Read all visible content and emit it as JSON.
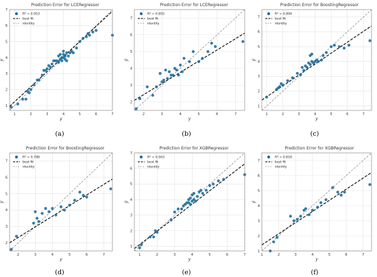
{
  "colors": {
    "point": "#1f6f9f",
    "best_fit": "#000000",
    "identity": "#8c8c8c",
    "grid": "#e3e3e3",
    "frame": "#7a7a7a"
  },
  "chart_data": [
    {
      "type": "scatter",
      "title": "Prediction Error for LCERegressor",
      "xlabel": "y",
      "ylabel": "ŷ",
      "xlim": [
        0.7,
        7
      ],
      "ylim": [
        0.7,
        7
      ],
      "xticks": [
        "1",
        "2",
        "3",
        "4",
        "5",
        "6",
        "7"
      ],
      "yticks": [
        "1",
        "2",
        "3",
        "4",
        "5",
        "6",
        "7"
      ],
      "legend": {
        "position": "top-left",
        "r2_label": "R² = 0.953",
        "best_fit": "best fit",
        "identity": "identity"
      },
      "best_fit_line": [
        [
          0.7,
          0.95
        ],
        [
          7,
          6.9
        ]
      ],
      "subfigure_label": "(a)",
      "points": {
        "x": [
          0.8,
          1.2,
          1.5,
          1.7,
          1.8,
          1.9,
          2.0,
          2.2,
          2.4,
          2.5,
          2.7,
          2.8,
          2.9,
          3.0,
          3.1,
          3.2,
          3.3,
          3.4,
          3.5,
          3.6,
          3.7,
          3.7,
          3.8,
          3.8,
          3.9,
          3.9,
          4.0,
          4.0,
          4.0,
          4.1,
          4.1,
          4.2,
          4.2,
          4.3,
          4.4,
          4.5,
          4.6,
          4.8,
          5.0,
          5.2,
          5.4,
          5.5,
          5.6,
          5.8,
          6.0,
          7.0
        ],
        "y": [
          0.9,
          1.1,
          1.4,
          1.4,
          1.9,
          1.8,
          2.0,
          2.3,
          2.6,
          2.6,
          2.9,
          3.2,
          3.2,
          3.3,
          3.5,
          3.4,
          3.6,
          3.8,
          3.8,
          3.8,
          3.7,
          4.1,
          3.9,
          4.2,
          3.8,
          4.0,
          4.0,
          4.2,
          4.4,
          3.9,
          4.1,
          3.8,
          4.3,
          4.1,
          4.3,
          4.4,
          4.3,
          4.6,
          5.0,
          5.2,
          5.3,
          5.5,
          5.4,
          5.6,
          5.7,
          5.4
        ]
      }
    },
    {
      "type": "scatter",
      "title": "Prediction Error for LCERegressor",
      "xlabel": "y",
      "ylabel": "ŷ",
      "xlim": [
        1.5,
        7.5
      ],
      "ylim": [
        1.5,
        7.5
      ],
      "xticks": [
        "2",
        "3",
        "4",
        "5",
        "6",
        "7"
      ],
      "yticks": [
        "2",
        "3",
        "4",
        "5",
        "6",
        "7"
      ],
      "legend": {
        "position": "top-left",
        "r2_label": "R² = 0.855",
        "best_fit": "best fit",
        "identity": "identity"
      },
      "best_fit_line": [
        [
          1.5,
          2.1
        ],
        [
          7.5,
          6.1
        ]
      ],
      "subfigure_label": "(b)",
      "points": {
        "x": [
          1.6,
          1.8,
          2.2,
          2.5,
          2.7,
          2.9,
          3.0,
          3.1,
          3.2,
          3.3,
          3.4,
          3.5,
          3.6,
          3.7,
          3.8,
          3.9,
          4.0,
          4.1,
          4.2,
          4.5,
          4.7,
          5.0,
          5.2,
          5.5,
          5.7,
          5.9,
          7.4
        ],
        "y": [
          1.6,
          2.2,
          2.9,
          2.4,
          2.9,
          3.7,
          3.2,
          3.3,
          3.9,
          3.4,
          3.8,
          3.6,
          3.6,
          4.0,
          3.9,
          3.6,
          4.2,
          3.8,
          4.6,
          4.4,
          5.0,
          4.4,
          4.6,
          5.0,
          5.5,
          5.3,
          5.6
        ]
      }
    },
    {
      "type": "scatter",
      "title": "Prediction Error for BoostingRegressor",
      "xlabel": "y",
      "ylabel": "ŷ",
      "xlim": [
        0.7,
        7.5
      ],
      "ylim": [
        0.7,
        7.5
      ],
      "xticks": [
        "1",
        "2",
        "3",
        "4",
        "5",
        "6",
        "7"
      ],
      "yticks": [
        "1",
        "2",
        "3",
        "4",
        "5",
        "6",
        "7"
      ],
      "legend": {
        "position": "top-left",
        "r2_label": "R² = 0.894",
        "best_fit": "best fit",
        "identity": "identity"
      },
      "best_fit_line": [
        [
          0.7,
          1.4
        ],
        [
          7.5,
          6.4
        ]
      ],
      "subfigure_label": "(c)",
      "points": {
        "x": [
          1.0,
          1.6,
          1.7,
          1.8,
          1.9,
          2.0,
          2.3,
          2.6,
          2.9,
          3.1,
          3.2,
          3.3,
          3.4,
          3.5,
          3.6,
          3.7,
          3.7,
          3.8,
          3.8,
          3.9,
          4.0,
          4.1,
          4.2,
          4.4,
          4.5,
          4.7,
          5.0,
          5.2,
          5.5,
          5.8,
          6.1,
          7.4
        ],
        "y": [
          1.6,
          2.1,
          2.2,
          2.3,
          2.5,
          2.4,
          2.7,
          2.9,
          3.2,
          3.1,
          3.6,
          3.4,
          3.7,
          3.6,
          3.9,
          3.8,
          4.4,
          4.0,
          4.5,
          3.9,
          4.0,
          4.1,
          4.0,
          4.1,
          4.4,
          4.6,
          5.0,
          5.1,
          5.0,
          4.9,
          5.1,
          5.4
        ]
      }
    },
    {
      "type": "scatter",
      "title": "Prediction Error for BoostingRegressor",
      "xlabel": "y",
      "ylabel": "ŷ",
      "xlim": [
        1.5,
        7.5
      ],
      "ylim": [
        1.5,
        7.5
      ],
      "xticks": [
        "2",
        "3",
        "4",
        "5",
        "6",
        "7"
      ],
      "yticks": [
        "2",
        "3",
        "4",
        "5",
        "6",
        "7"
      ],
      "legend": {
        "position": "top-left",
        "r2_label": "R² = 0.788",
        "best_fit": "best fit",
        "identity": "identity"
      },
      "best_fit_line": [
        [
          1.5,
          2.0
        ],
        [
          7.5,
          5.9
        ]
      ],
      "subfigure_label": "(d)",
      "points": {
        "x": [
          1.6,
          1.9,
          2.9,
          3.0,
          3.1,
          3.2,
          3.4,
          3.6,
          3.8,
          4.0,
          4.2,
          4.5,
          4.7,
          5.0,
          5.3,
          5.6,
          5.8,
          6.0,
          7.4
        ],
        "y": [
          1.6,
          2.4,
          3.2,
          3.9,
          3.5,
          3.3,
          3.8,
          4.1,
          3.9,
          4.1,
          3.7,
          4.2,
          4.0,
          4.3,
          4.6,
          5.1,
          4.9,
          4.8,
          5.3
        ]
      }
    },
    {
      "type": "scatter",
      "title": "Prediction Error for XGBRegressor",
      "xlabel": "y",
      "ylabel": "ŷ",
      "xlim": [
        0.7,
        7
      ],
      "ylim": [
        0.7,
        7
      ],
      "xticks": [
        "1",
        "2",
        "3",
        "4",
        "5",
        "6",
        "7"
      ],
      "yticks": [
        "1",
        "2",
        "3",
        "4",
        "5",
        "6",
        "7"
      ],
      "legend": {
        "position": "top-left",
        "r2_label": "R² = 0.943",
        "best_fit": "best fit",
        "identity": "identity"
      },
      "best_fit_line": [
        [
          0.7,
          0.85
        ],
        [
          7,
          6.3
        ]
      ],
      "subfigure_label": "(e)",
      "points": {
        "x": [
          1.0,
          1.1,
          1.6,
          1.8,
          1.9,
          2.0,
          2.8,
          3.0,
          3.2,
          3.4,
          3.5,
          3.6,
          3.7,
          3.8,
          3.8,
          3.9,
          3.9,
          4.0,
          4.0,
          4.1,
          4.1,
          4.2,
          4.3,
          4.4,
          4.5,
          4.6,
          4.8,
          5.0,
          5.2,
          5.5,
          5.8,
          7.0
        ],
        "y": [
          0.9,
          1.1,
          1.6,
          1.6,
          2.0,
          1.9,
          2.7,
          3.2,
          3.4,
          3.4,
          3.6,
          3.7,
          3.8,
          3.8,
          4.0,
          3.7,
          4.1,
          3.9,
          4.3,
          4.0,
          4.4,
          3.9,
          4.2,
          4.5,
          4.6,
          4.4,
          4.6,
          4.9,
          5.0,
          5.2,
          5.3,
          5.6
        ]
      }
    },
    {
      "type": "scatter",
      "title": "Prediction Error for XGBRegressor",
      "xlabel": "y",
      "ylabel": "ŷ",
      "xlim": [
        1.0,
        7.5
      ],
      "ylim": [
        1.0,
        7.5
      ],
      "xticks": [
        "1",
        "2",
        "3",
        "4",
        "5",
        "6",
        "7"
      ],
      "yticks": [
        "1",
        "2",
        "3",
        "4",
        "5",
        "6",
        "7"
      ],
      "legend": {
        "position": "top-left",
        "r2_label": "R² = 0.818",
        "best_fit": "best fit",
        "identity": "identity"
      },
      "best_fit_line": [
        [
          1.0,
          1.4
        ],
        [
          7.5,
          6.2
        ]
      ],
      "subfigure_label": "(f)",
      "points": {
        "x": [
          1.5,
          1.7,
          1.9,
          2.7,
          2.9,
          3.1,
          3.3,
          3.5,
          3.6,
          3.8,
          4.0,
          4.3,
          4.5,
          4.8,
          5.2,
          5.5,
          5.7,
          5.9,
          7.4
        ],
        "y": [
          1.0,
          1.6,
          1.9,
          3.3,
          3.0,
          3.1,
          3.3,
          3.7,
          3.8,
          3.4,
          3.7,
          3.9,
          4.2,
          4.4,
          5.2,
          4.9,
          4.7,
          4.9,
          5.4
        ]
      }
    }
  ]
}
